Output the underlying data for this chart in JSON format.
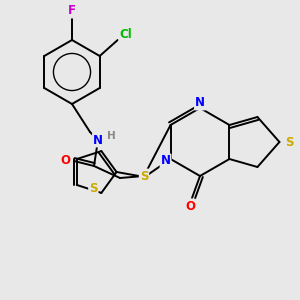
{
  "bg_color": "#e8e8e8",
  "bond_color": "#000000",
  "figsize": [
    3.0,
    3.0
  ],
  "dpi": 100,
  "lw": 1.4,
  "colors": {
    "N": "#0000ff",
    "O": "#ff0000",
    "S": "#ccaa00",
    "Cl": "#00bb00",
    "F": "#cc00cc",
    "H": "#888888",
    "C": "#000000"
  }
}
